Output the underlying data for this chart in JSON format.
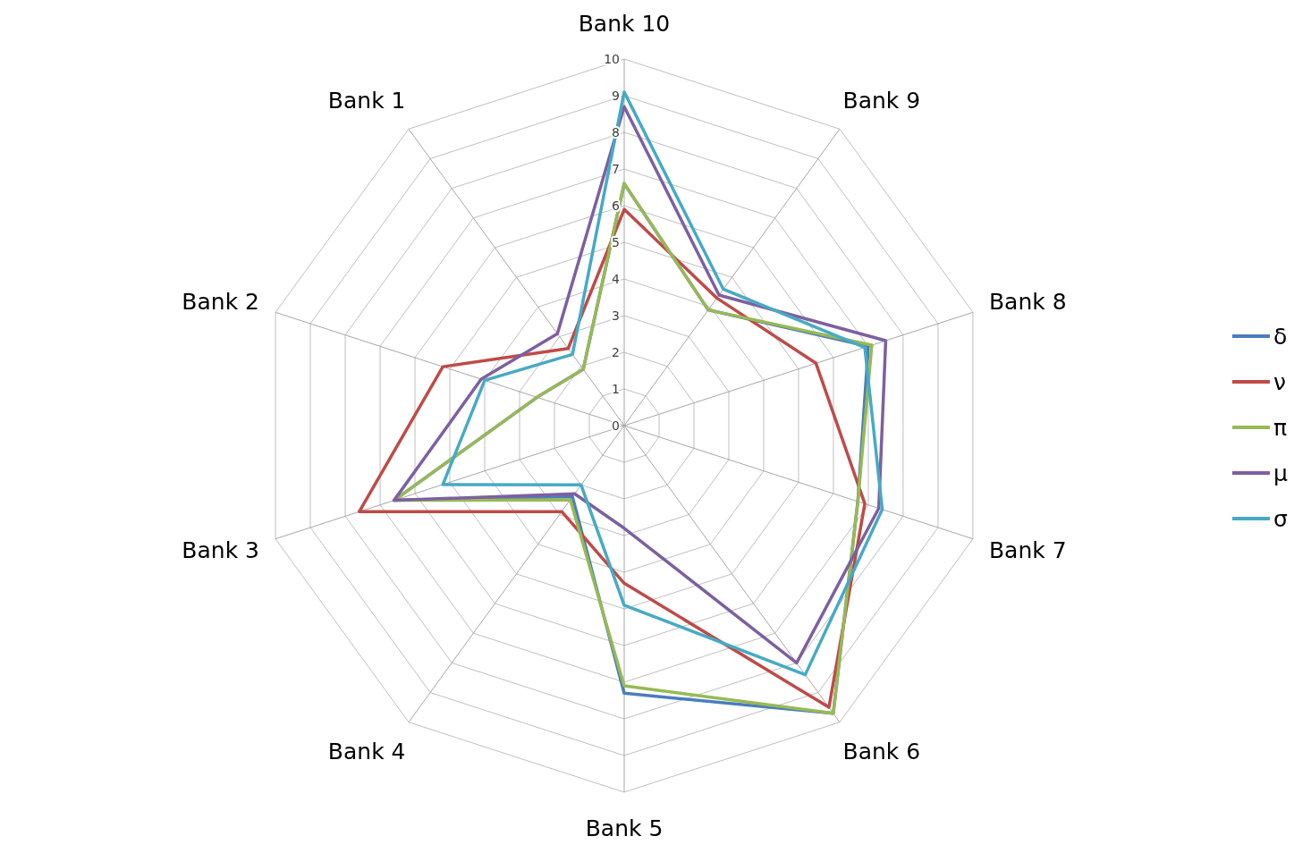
{
  "chart_data": {
    "type": "radar",
    "categories": [
      "Bank 10",
      "Bank 9",
      "Bank 8",
      "Bank 7",
      "Bank 6",
      "Bank 5",
      "Bank 4",
      "Bank 3",
      "Bank 2",
      "Bank 1"
    ],
    "ylim": [
      0,
      10
    ],
    "yticks": [
      0,
      1,
      2,
      3,
      4,
      5,
      6,
      7,
      8,
      9,
      10
    ],
    "grid": true,
    "legend": "right",
    "marker": "none",
    "series": [
      {
        "name": "δ",
        "color": "#4a7ebb",
        "values": [
          6.6,
          3.9,
          7.0,
          6.7,
          9.7,
          7.3,
          2.4,
          6.6,
          2.5,
          1.9
        ]
      },
      {
        "name": "ν",
        "color": "#be4b48",
        "values": [
          5.9,
          4.3,
          5.5,
          6.9,
          9.5,
          4.3,
          2.9,
          7.6,
          5.2,
          2.6
        ]
      },
      {
        "name": "π",
        "color": "#98b954",
        "values": [
          6.6,
          3.9,
          7.1,
          6.7,
          9.7,
          7.1,
          2.5,
          6.6,
          2.5,
          1.9
        ]
      },
      {
        "name": "μ",
        "color": "#7d60a0",
        "values": [
          8.7,
          4.4,
          7.5,
          7.3,
          8.0,
          2.8,
          2.3,
          6.6,
          4.1,
          3.1
        ]
      },
      {
        "name": "σ",
        "color": "#46aac5",
        "values": [
          9.1,
          4.6,
          6.9,
          7.4,
          8.4,
          4.9,
          2.0,
          5.2,
          4.0,
          2.4
        ]
      }
    ]
  }
}
